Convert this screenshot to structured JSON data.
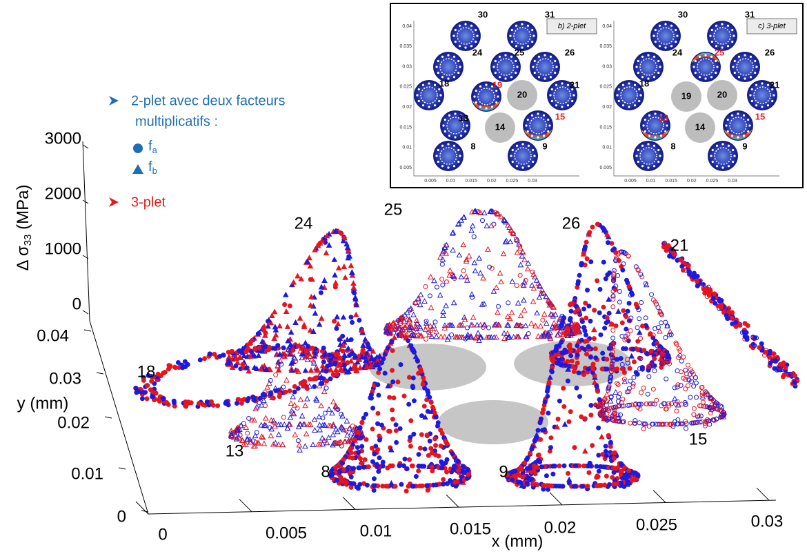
{
  "legend": {
    "title_line1": "2-plet avec deux facteurs",
    "title_line2": "multiplicatifs :",
    "items": [
      {
        "base": "f",
        "sub": "a"
      },
      {
        "base": "f",
        "sub": "b"
      }
    ],
    "other": "3-plet"
  },
  "axes": {
    "z_label": {
      "text": "Δ σ",
      "sub": "33",
      "unit": " (MPa)"
    },
    "z_ticks": [
      "0",
      "1000",
      "2000",
      "3000"
    ],
    "y_label": "y (mm)",
    "y_ticks": [
      "0",
      "0.01",
      "0.02",
      "0.03",
      "0.04"
    ],
    "x_label": "x (mm)",
    "x_ticks": [
      "0",
      "0.005",
      "0.01",
      "0.015",
      "0.02",
      "0.025",
      "0.03"
    ]
  },
  "wire_labels": [
    "24",
    "25",
    "26",
    "21",
    "18",
    "13",
    "8",
    "9",
    "15"
  ],
  "inset": {
    "panels": [
      {
        "title": "b) 2-plet",
        "wires": [
          "30",
          "31",
          "24",
          "25",
          "26",
          "18",
          "19",
          "20",
          "21",
          "13",
          "14",
          "15",
          "8",
          "9"
        ]
      },
      {
        "title": "c) 3-plet",
        "wires": [
          "30",
          "31",
          "24",
          "25",
          "26",
          "18",
          "19",
          "20",
          "21",
          "13",
          "14",
          "15",
          "8",
          "9"
        ]
      }
    ],
    "y_ticks": [
      "0.04",
      "0.035",
      "0.03",
      "0.025",
      "0.02",
      "0.015",
      "0.01",
      "0.005"
    ],
    "x_ticks": [
      "0.005",
      "0.01",
      "0.015",
      "0.02",
      "0.025",
      "0.03"
    ]
  }
}
